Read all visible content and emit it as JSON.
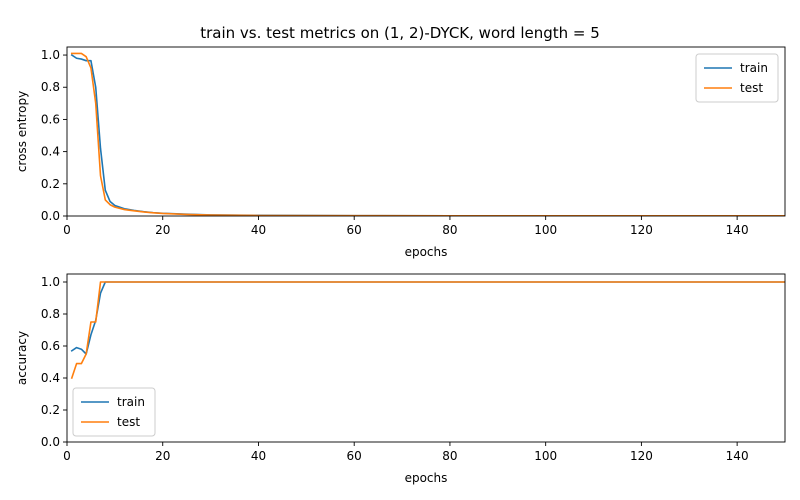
{
  "figure": {
    "title": "train vs. test metrics on (1, 2)-DYCK, word length = 5"
  },
  "chart_data": [
    {
      "type": "line",
      "xlabel": "epochs",
      "ylabel": "cross entropy",
      "xlim": [
        0,
        150
      ],
      "ylim": [
        0,
        1.05
      ],
      "xticks": [
        0,
        20,
        40,
        60,
        80,
        100,
        120,
        140
      ],
      "yticks": [
        0.0,
        0.2,
        0.4,
        0.6,
        0.8,
        1.0
      ],
      "xtick_labels": [
        "0",
        "20",
        "40",
        "60",
        "80",
        "100",
        "120",
        "140"
      ],
      "ytick_labels": [
        "0.0",
        "0.2",
        "0.4",
        "0.6",
        "0.8",
        "1.0"
      ],
      "legend_position": "top-right",
      "grid": false,
      "series": [
        {
          "name": "train",
          "color": "#1f77b4",
          "x": [
            1,
            2,
            3,
            4,
            5,
            6,
            7,
            8,
            9,
            10,
            12,
            14,
            16,
            18,
            20,
            25,
            30,
            40,
            60,
            80,
            100,
            120,
            150
          ],
          "y": [
            1.0,
            0.98,
            0.975,
            0.965,
            0.965,
            0.8,
            0.42,
            0.16,
            0.09,
            0.065,
            0.045,
            0.035,
            0.027,
            0.021,
            0.017,
            0.011,
            0.007,
            0.004,
            0.002,
            0.0015,
            0.001,
            0.001,
            0.001
          ]
        },
        {
          "name": "test",
          "color": "#ff7f0e",
          "x": [
            1,
            2,
            3,
            4,
            5,
            6,
            7,
            8,
            9,
            10,
            12,
            14,
            16,
            18,
            20,
            25,
            30,
            40,
            60,
            80,
            100,
            120,
            150
          ],
          "y": [
            1.01,
            1.01,
            1.01,
            0.99,
            0.92,
            0.7,
            0.25,
            0.1,
            0.07,
            0.055,
            0.04,
            0.032,
            0.025,
            0.02,
            0.016,
            0.01,
            0.006,
            0.003,
            0.002,
            0.0015,
            0.001,
            0.001,
            0.001
          ]
        }
      ]
    },
    {
      "type": "line",
      "xlabel": "epochs",
      "ylabel": "accuracy",
      "xlim": [
        0,
        150
      ],
      "ylim": [
        0,
        1.05
      ],
      "xticks": [
        0,
        20,
        40,
        60,
        80,
        100,
        120,
        140
      ],
      "yticks": [
        0.0,
        0.2,
        0.4,
        0.6,
        0.8,
        1.0
      ],
      "xtick_labels": [
        "0",
        "20",
        "40",
        "60",
        "80",
        "100",
        "120",
        "140"
      ],
      "ytick_labels": [
        "0.0",
        "0.2",
        "0.4",
        "0.6",
        "0.8",
        "1.0"
      ],
      "legend_position": "bottom-left",
      "grid": false,
      "series": [
        {
          "name": "train",
          "color": "#1f77b4",
          "x": [
            1,
            2,
            3,
            4,
            5,
            6,
            7,
            8,
            9,
            10,
            150
          ],
          "y": [
            0.57,
            0.59,
            0.58,
            0.55,
            0.67,
            0.76,
            0.93,
            1.0,
            1.0,
            1.0,
            1.0
          ]
        },
        {
          "name": "test",
          "color": "#ff7f0e",
          "x": [
            1,
            2,
            3,
            4,
            5,
            6,
            7,
            8,
            9,
            10,
            150
          ],
          "y": [
            0.4,
            0.49,
            0.49,
            0.55,
            0.75,
            0.75,
            1.0,
            1.0,
            1.0,
            1.0,
            1.0
          ]
        }
      ]
    }
  ]
}
